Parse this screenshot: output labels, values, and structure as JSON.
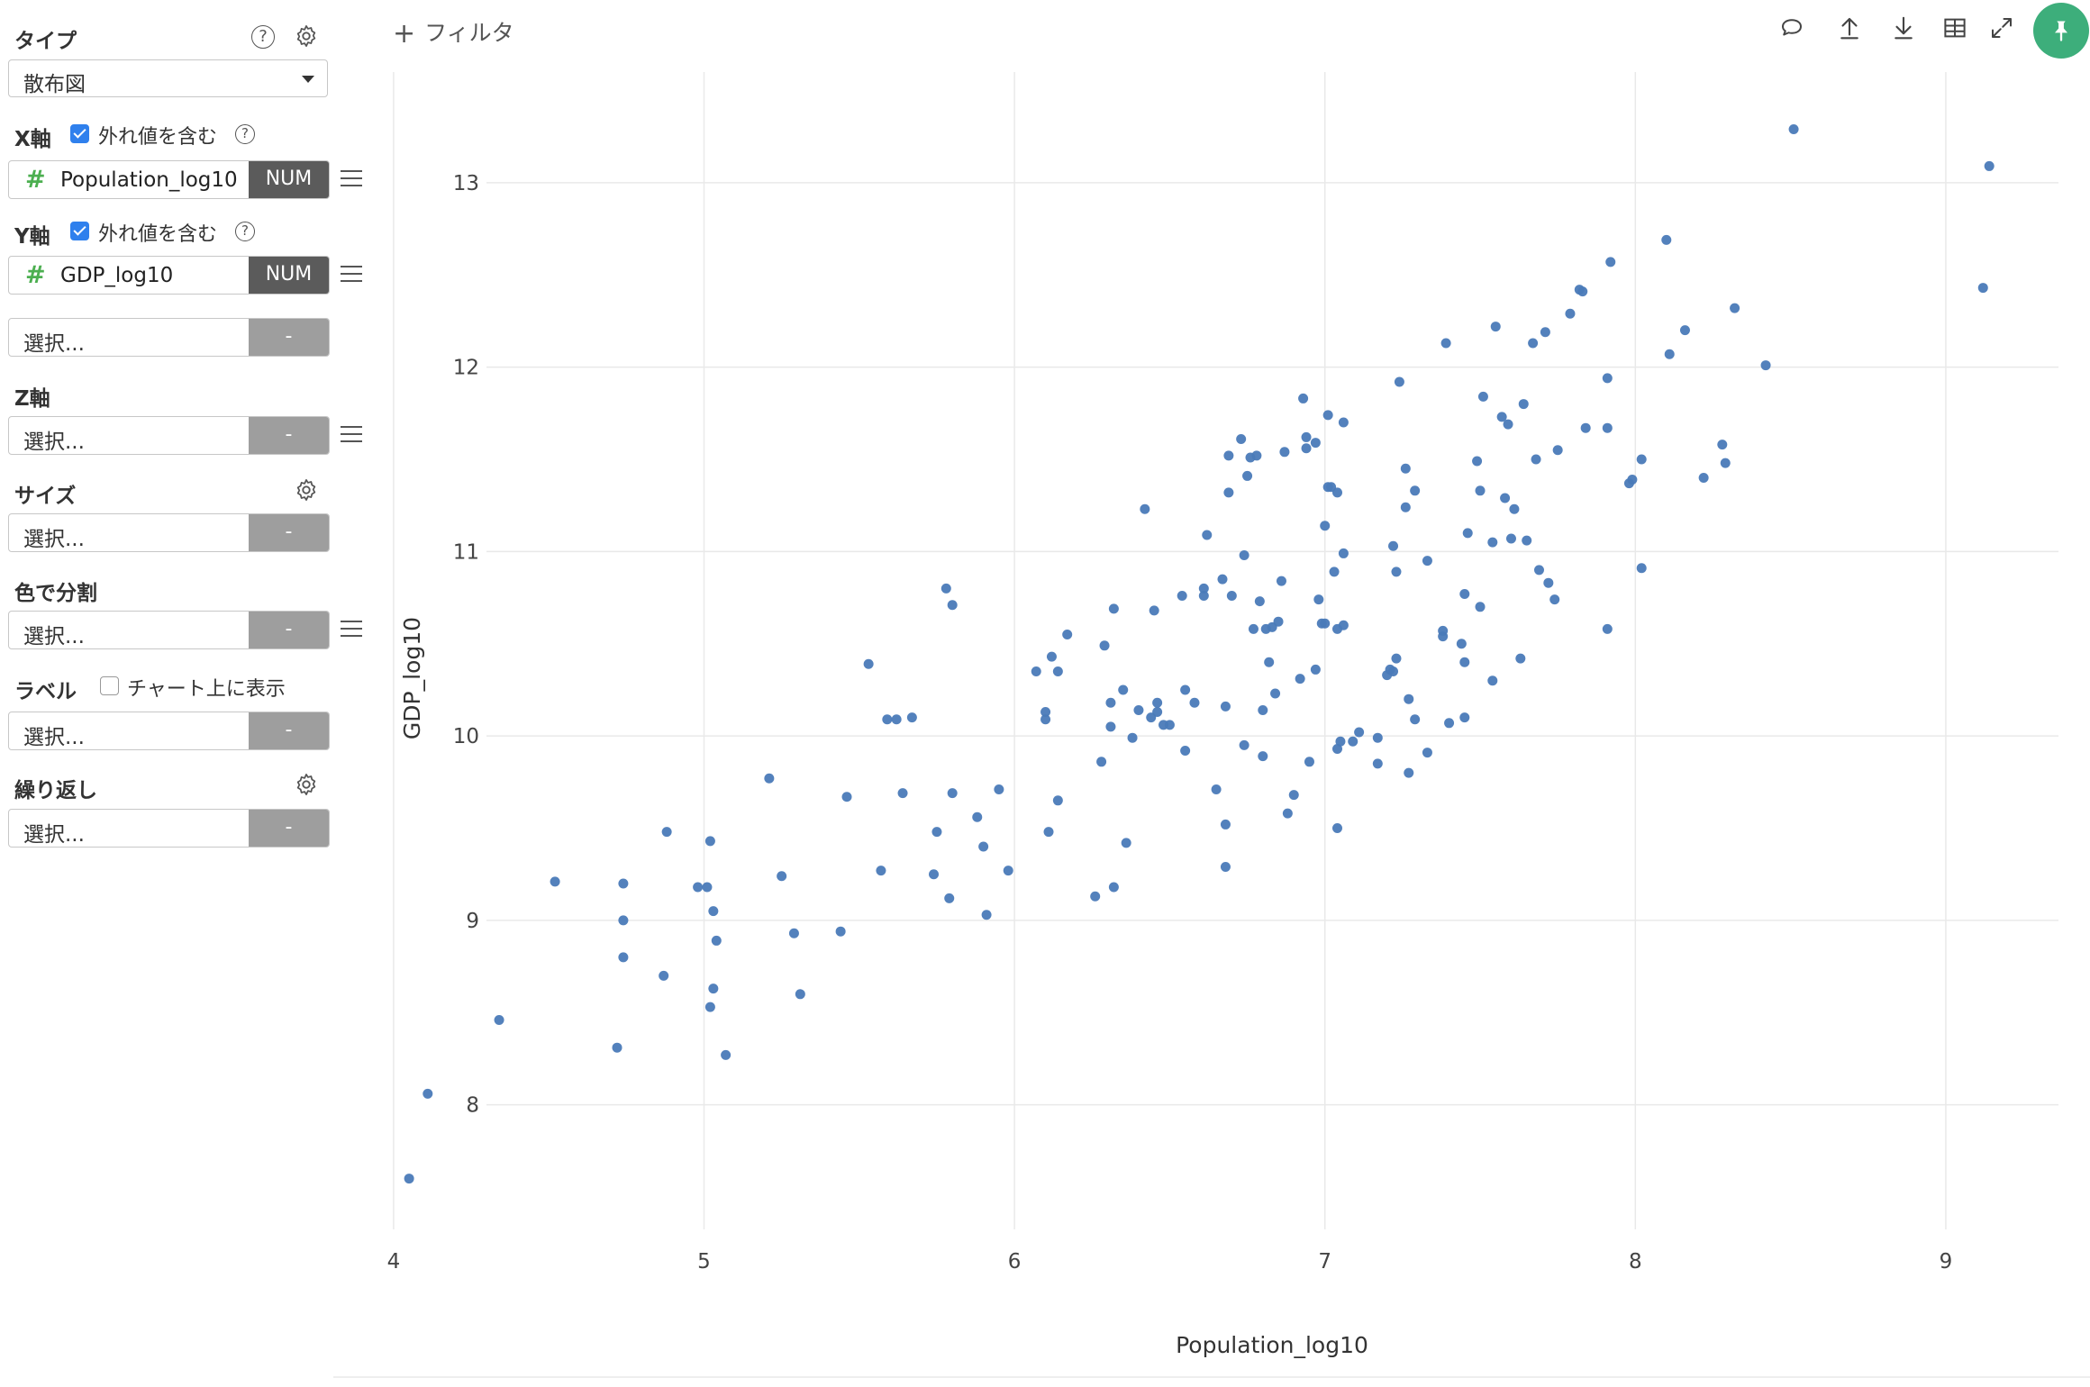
{
  "sidebar": {
    "type_label": "タイプ",
    "chart_type": "散布図",
    "x_axis": {
      "label": "X軸",
      "include_outliers_label": "外れ値を含む",
      "include_outliers": true,
      "field_name": "Population_log10",
      "field_type": "NUM",
      "field_icon": "#"
    },
    "y_axis": {
      "label": "Y軸",
      "include_outliers_label": "外れ値を含む",
      "include_outliers": true,
      "field_name": "GDP_log10",
      "field_type": "NUM",
      "field_icon": "#"
    },
    "y_extra": {
      "placeholder": "選択...",
      "tag": "-"
    },
    "z_axis": {
      "label": "Z軸",
      "placeholder": "選択...",
      "tag": "-"
    },
    "size": {
      "label": "サイズ",
      "placeholder": "選択...",
      "tag": "-"
    },
    "color_split": {
      "label": "色で分割",
      "placeholder": "選択...",
      "tag": "-"
    },
    "label": {
      "label": "ラベル",
      "show_on_chart_label": "チャート上に表示",
      "show_on_chart": false,
      "placeholder": "選択...",
      "tag": "-"
    },
    "repeat": {
      "label": "繰り返し",
      "placeholder": "選択...",
      "tag": "-"
    }
  },
  "toolbar": {
    "filter_label": "フィルタ",
    "icons": [
      "comment-icon",
      "upload-icon",
      "download-icon",
      "table-icon",
      "expand-icon",
      "pin-icon"
    ],
    "pin_color": "#3dae7b"
  },
  "chart_data": {
    "type": "scatter",
    "xlabel": "Population_log10",
    "ylabel": "GDP_log10",
    "xlim": [
      3.98,
      9.45
    ],
    "ylim": [
      7.3,
      13.6
    ],
    "xticks": [
      4,
      5,
      6,
      7,
      8,
      9
    ],
    "yticks": [
      8,
      9,
      10,
      11,
      12,
      13
    ],
    "grid": true,
    "marker_color": "#4a7ab8",
    "points": [
      [
        4.05,
        7.6
      ],
      [
        4.11,
        8.06
      ],
      [
        4.34,
        8.46
      ],
      [
        4.52,
        9.21
      ],
      [
        4.72,
        8.31
      ],
      [
        4.74,
        9.2
      ],
      [
        4.74,
        9.0
      ],
      [
        4.74,
        8.8
      ],
      [
        4.87,
        8.7
      ],
      [
        4.88,
        9.48
      ],
      [
        4.98,
        9.18
      ],
      [
        5.01,
        9.18
      ],
      [
        5.02,
        9.43
      ],
      [
        5.02,
        8.53
      ],
      [
        5.03,
        8.63
      ],
      [
        5.03,
        9.05
      ],
      [
        5.04,
        8.89
      ],
      [
        5.07,
        8.27
      ],
      [
        5.21,
        9.77
      ],
      [
        5.25,
        9.24
      ],
      [
        5.29,
        8.93
      ],
      [
        5.31,
        8.6
      ],
      [
        5.44,
        8.94
      ],
      [
        5.46,
        9.67
      ],
      [
        5.53,
        10.39
      ],
      [
        5.57,
        9.27
      ],
      [
        5.59,
        10.09
      ],
      [
        5.62,
        10.09
      ],
      [
        5.64,
        9.69
      ],
      [
        5.67,
        10.1
      ],
      [
        5.74,
        9.25
      ],
      [
        5.75,
        9.48
      ],
      [
        5.78,
        10.8
      ],
      [
        5.79,
        9.12
      ],
      [
        5.8,
        9.69
      ],
      [
        5.8,
        10.71
      ],
      [
        5.88,
        9.56
      ],
      [
        5.9,
        9.4
      ],
      [
        5.91,
        9.03
      ],
      [
        5.95,
        9.71
      ],
      [
        5.98,
        9.27
      ],
      [
        6.07,
        10.35
      ],
      [
        6.1,
        10.13
      ],
      [
        6.1,
        10.09
      ],
      [
        6.11,
        9.48
      ],
      [
        6.12,
        10.43
      ],
      [
        6.14,
        9.65
      ],
      [
        6.14,
        10.35
      ],
      [
        6.17,
        10.55
      ],
      [
        6.26,
        9.13
      ],
      [
        6.28,
        9.86
      ],
      [
        6.29,
        10.49
      ],
      [
        6.31,
        10.18
      ],
      [
        6.31,
        10.05
      ],
      [
        6.32,
        9.18
      ],
      [
        6.32,
        10.69
      ],
      [
        6.35,
        10.25
      ],
      [
        6.36,
        9.42
      ],
      [
        6.38,
        9.99
      ],
      [
        6.4,
        10.14
      ],
      [
        6.42,
        11.23
      ],
      [
        6.44,
        10.1
      ],
      [
        6.45,
        10.68
      ],
      [
        6.46,
        10.18
      ],
      [
        6.46,
        10.13
      ],
      [
        6.48,
        10.06
      ],
      [
        6.5,
        10.06
      ],
      [
        6.54,
        10.76
      ],
      [
        6.55,
        9.92
      ],
      [
        6.55,
        10.25
      ],
      [
        6.58,
        10.18
      ],
      [
        6.61,
        10.8
      ],
      [
        6.61,
        10.76
      ],
      [
        6.62,
        11.09
      ],
      [
        6.65,
        9.71
      ],
      [
        6.67,
        10.85
      ],
      [
        6.68,
        10.16
      ],
      [
        6.68,
        9.29
      ],
      [
        6.68,
        9.52
      ],
      [
        6.69,
        11.52
      ],
      [
        6.69,
        11.32
      ],
      [
        6.7,
        10.76
      ],
      [
        6.73,
        11.61
      ],
      [
        6.74,
        9.95
      ],
      [
        6.74,
        10.98
      ],
      [
        6.75,
        11.41
      ],
      [
        6.76,
        11.51
      ],
      [
        6.77,
        10.58
      ],
      [
        6.78,
        11.52
      ],
      [
        6.79,
        10.73
      ],
      [
        6.8,
        10.14
      ],
      [
        6.8,
        9.89
      ],
      [
        6.81,
        10.58
      ],
      [
        6.82,
        10.4
      ],
      [
        6.83,
        10.59
      ],
      [
        6.84,
        10.23
      ],
      [
        6.85,
        10.62
      ],
      [
        6.86,
        10.84
      ],
      [
        6.87,
        11.54
      ],
      [
        6.88,
        9.58
      ],
      [
        6.9,
        9.68
      ],
      [
        6.92,
        10.31
      ],
      [
        6.93,
        11.83
      ],
      [
        6.94,
        11.62
      ],
      [
        6.94,
        11.56
      ],
      [
        6.95,
        9.86
      ],
      [
        6.97,
        11.59
      ],
      [
        6.97,
        10.36
      ],
      [
        6.98,
        10.74
      ],
      [
        6.99,
        10.61
      ],
      [
        7.0,
        10.61
      ],
      [
        7.0,
        11.14
      ],
      [
        7.01,
        11.74
      ],
      [
        7.01,
        11.35
      ],
      [
        7.02,
        11.35
      ],
      [
        7.03,
        10.89
      ],
      [
        7.04,
        9.5
      ],
      [
        7.04,
        9.93
      ],
      [
        7.04,
        11.32
      ],
      [
        7.04,
        10.58
      ],
      [
        7.05,
        9.97
      ],
      [
        7.06,
        11.7
      ],
      [
        7.06,
        10.99
      ],
      [
        7.06,
        10.6
      ],
      [
        7.09,
        9.97
      ],
      [
        7.11,
        10.02
      ],
      [
        7.17,
        9.99
      ],
      [
        7.17,
        9.85
      ],
      [
        7.2,
        10.33
      ],
      [
        7.21,
        10.36
      ],
      [
        7.22,
        10.35
      ],
      [
        7.22,
        11.03
      ],
      [
        7.23,
        10.89
      ],
      [
        7.23,
        10.42
      ],
      [
        7.24,
        11.92
      ],
      [
        7.26,
        11.24
      ],
      [
        7.26,
        11.45
      ],
      [
        7.27,
        10.2
      ],
      [
        7.27,
        9.8
      ],
      [
        7.29,
        10.09
      ],
      [
        7.29,
        11.33
      ],
      [
        7.33,
        10.95
      ],
      [
        7.33,
        9.91
      ],
      [
        7.38,
        10.54
      ],
      [
        7.38,
        10.57
      ],
      [
        7.39,
        12.13
      ],
      [
        7.4,
        10.07
      ],
      [
        7.44,
        10.5
      ],
      [
        7.45,
        10.1
      ],
      [
        7.45,
        10.4
      ],
      [
        7.45,
        10.77
      ],
      [
        7.46,
        11.1
      ],
      [
        7.49,
        11.49
      ],
      [
        7.5,
        10.7
      ],
      [
        7.5,
        11.33
      ],
      [
        7.51,
        11.84
      ],
      [
        7.54,
        10.3
      ],
      [
        7.54,
        11.05
      ],
      [
        7.55,
        12.22
      ],
      [
        7.57,
        11.73
      ],
      [
        7.58,
        11.29
      ],
      [
        7.59,
        11.69
      ],
      [
        7.6,
        11.07
      ],
      [
        7.61,
        11.23
      ],
      [
        7.63,
        10.42
      ],
      [
        7.64,
        11.8
      ],
      [
        7.65,
        11.06
      ],
      [
        7.67,
        12.13
      ],
      [
        7.68,
        11.5
      ],
      [
        7.69,
        10.9
      ],
      [
        7.71,
        12.19
      ],
      [
        7.72,
        10.83
      ],
      [
        7.74,
        10.74
      ],
      [
        7.75,
        11.55
      ],
      [
        7.79,
        12.29
      ],
      [
        7.82,
        12.42
      ],
      [
        7.83,
        12.41
      ],
      [
        7.84,
        11.67
      ],
      [
        7.91,
        10.58
      ],
      [
        7.91,
        11.67
      ],
      [
        7.91,
        11.94
      ],
      [
        7.92,
        12.57
      ],
      [
        7.98,
        11.37
      ],
      [
        7.99,
        11.39
      ],
      [
        8.02,
        10.91
      ],
      [
        8.02,
        11.5
      ],
      [
        8.1,
        12.69
      ],
      [
        8.11,
        12.07
      ],
      [
        8.16,
        12.2
      ],
      [
        8.22,
        11.4
      ],
      [
        8.28,
        11.58
      ],
      [
        8.29,
        11.48
      ],
      [
        8.32,
        12.32
      ],
      [
        8.42,
        12.01
      ],
      [
        8.51,
        13.29
      ],
      [
        9.12,
        12.43
      ],
      [
        9.14,
        13.09
      ]
    ]
  }
}
